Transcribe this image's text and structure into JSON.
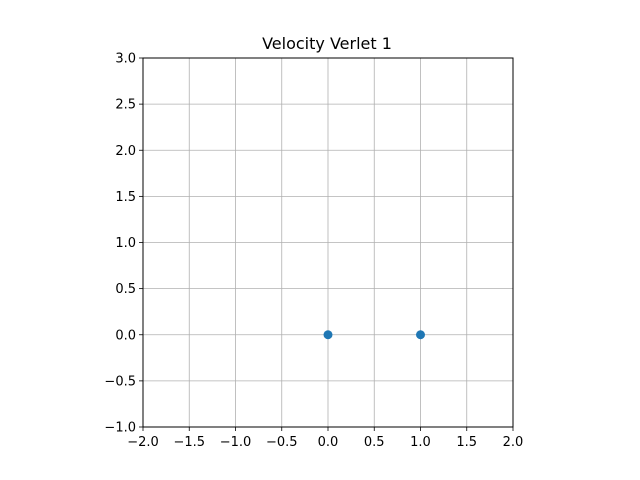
{
  "chart_data": {
    "type": "scatter",
    "title": "Velocity Verlet 1",
    "xlabel": "",
    "ylabel": "",
    "xlim": [
      -2.0,
      2.0
    ],
    "ylim": [
      -1.0,
      3.0
    ],
    "grid": true,
    "x_ticks": [
      -2.0,
      -1.5,
      -1.0,
      -0.5,
      0.0,
      0.5,
      1.0,
      1.5,
      2.0
    ],
    "x_tick_labels": [
      "−2.0",
      "−1.5",
      "−1.0",
      "−0.5",
      "0.0",
      "0.5",
      "1.0",
      "1.5",
      "2.0"
    ],
    "y_ticks": [
      -1.0,
      -0.5,
      0.0,
      0.5,
      1.0,
      1.5,
      2.0,
      2.5,
      3.0
    ],
    "y_tick_labels": [
      "−1.0",
      "−0.5",
      "0.0",
      "0.5",
      "1.0",
      "1.5",
      "2.0",
      "2.5",
      "3.0"
    ],
    "series": [
      {
        "x": [
          0.0,
          1.0
        ],
        "y": [
          0.0,
          0.0
        ],
        "color": "#1f77b4"
      }
    ],
    "grid_color": "#b0b0b0"
  }
}
